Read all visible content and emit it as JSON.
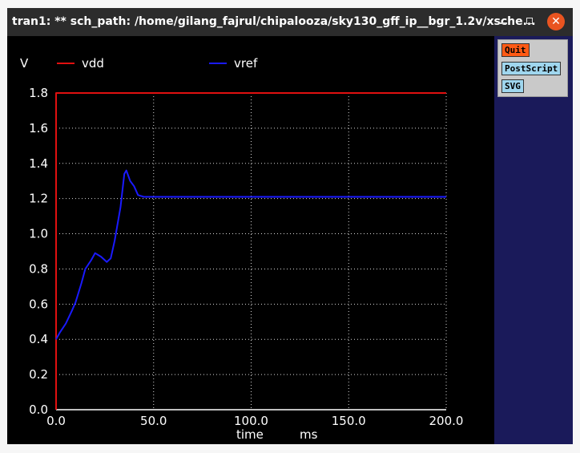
{
  "window": {
    "title": "tran1: ** sch_path: /home/gilang_fajrul/chipalooza/sky130_gff_ip__bgr_1.2v/xsche...",
    "minimize_glyph": "",
    "maximize_glyph": "",
    "close_glyph": "✕"
  },
  "buttons": {
    "quit": "Quit",
    "postscript": "PostScript",
    "svg": "SVG"
  },
  "chart_data": {
    "type": "line",
    "ylabel": "V",
    "xlabel": "time",
    "xunit": "ms",
    "xlim": [
      0,
      200
    ],
    "ylim": [
      0,
      1.8
    ],
    "xticks": [
      "0.0",
      "50.0",
      "100.0",
      "150.0",
      "200.0"
    ],
    "yticks": [
      "0.0",
      "0.2",
      "0.4",
      "0.6",
      "0.8",
      "1.0",
      "1.2",
      "1.4",
      "1.6",
      "1.8"
    ],
    "xtick_values": [
      0,
      50,
      100,
      150,
      200
    ],
    "ytick_values": [
      0,
      0.2,
      0.4,
      0.6,
      0.8,
      1.0,
      1.2,
      1.4,
      1.6,
      1.8
    ],
    "grid": true,
    "series": [
      {
        "name": "vdd",
        "color": "#e01010",
        "x": [
          0,
          0.01,
          200
        ],
        "y": [
          0,
          1.8,
          1.8
        ]
      },
      {
        "name": "vref",
        "color": "#1a1aff",
        "x": [
          0,
          2,
          5,
          8,
          10,
          13,
          15,
          18,
          20,
          23,
          26,
          28,
          30,
          33,
          35,
          36,
          38,
          40,
          42,
          45,
          50,
          60,
          80,
          100,
          120,
          150,
          180,
          200
        ],
        "y": [
          0.4,
          0.44,
          0.49,
          0.56,
          0.61,
          0.72,
          0.8,
          0.85,
          0.89,
          0.87,
          0.84,
          0.86,
          0.96,
          1.15,
          1.34,
          1.36,
          1.3,
          1.27,
          1.22,
          1.21,
          1.21,
          1.21,
          1.21,
          1.21,
          1.21,
          1.21,
          1.21,
          1.21
        ]
      }
    ]
  }
}
